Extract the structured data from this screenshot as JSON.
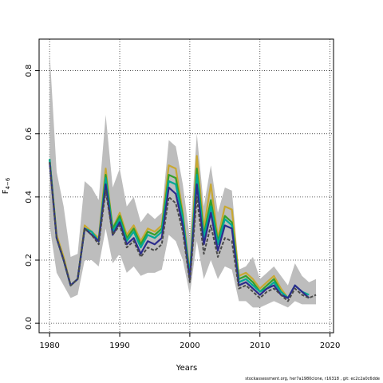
{
  "chart_data": {
    "type": "line",
    "title": "",
    "xlabel": "Years",
    "ylabel": "F",
    "ylabel_sub": "4−6",
    "xlim": [
      1978.5,
      2020.5
    ],
    "ylim": [
      -0.03,
      0.9
    ],
    "x_ticks": [
      1980,
      1990,
      2000,
      2010,
      2020
    ],
    "y_ticks": [
      0.0,
      0.2,
      0.4,
      0.6,
      0.8
    ],
    "grid": true,
    "legend": "none",
    "band": {
      "x": [
        1980,
        1981,
        1982,
        1983,
        1984,
        1985,
        1986,
        1987,
        1988,
        1989,
        1990,
        1991,
        1992,
        1993,
        1994,
        1995,
        1996,
        1997,
        1998,
        1999,
        2000,
        2001,
        2002,
        2003,
        2004,
        2005,
        2006,
        2007,
        2008,
        2009,
        2010,
        2011,
        2012,
        2013,
        2014,
        2015,
        2016,
        2017,
        2018
      ],
      "upper": [
        0.86,
        0.48,
        0.37,
        0.21,
        0.22,
        0.45,
        0.43,
        0.39,
        0.66,
        0.43,
        0.49,
        0.37,
        0.4,
        0.32,
        0.35,
        0.33,
        0.35,
        0.58,
        0.56,
        0.44,
        0.27,
        0.6,
        0.37,
        0.5,
        0.35,
        0.43,
        0.42,
        0.17,
        0.18,
        0.21,
        0.14,
        0.16,
        0.18,
        0.15,
        0.12,
        0.19,
        0.15,
        0.13,
        0.14
      ],
      "lower": [
        0.31,
        0.16,
        0.12,
        0.08,
        0.09,
        0.2,
        0.2,
        0.18,
        0.3,
        0.19,
        0.22,
        0.16,
        0.18,
        0.15,
        0.16,
        0.16,
        0.17,
        0.28,
        0.26,
        0.2,
        0.09,
        0.26,
        0.14,
        0.2,
        0.14,
        0.18,
        0.17,
        0.07,
        0.07,
        0.05,
        0.05,
        0.06,
        0.07,
        0.06,
        0.05,
        0.07,
        0.06,
        0.06,
        0.06
      ],
      "color": "#bdbdbd"
    },
    "series": [
      {
        "color": "#c8a832",
        "dashed": false,
        "x": [
          1980,
          1981,
          1982,
          1983,
          1984,
          1985,
          1986,
          1987,
          1988,
          1989,
          1990,
          1991,
          1992,
          1993,
          1994,
          1995,
          1996,
          1997,
          1998,
          1999,
          2000,
          2001,
          2002,
          2003,
          2004,
          2005,
          2006,
          2007,
          2008,
          2009,
          2010,
          2011,
          2012,
          2013,
          2014
        ],
        "values": [
          0.52,
          0.28,
          0.21,
          0.12,
          0.14,
          0.31,
          0.29,
          0.27,
          0.49,
          0.3,
          0.35,
          0.28,
          0.31,
          0.26,
          0.3,
          0.29,
          0.31,
          0.5,
          0.49,
          0.35,
          0.16,
          0.53,
          0.3,
          0.44,
          0.27,
          0.37,
          0.36,
          0.15,
          0.16,
          0.14,
          0.11,
          0.13,
          0.15,
          0.11,
          0.08
        ]
      },
      {
        "color": "#33a02c",
        "dashed": false,
        "x": [
          1980,
          1981,
          1982,
          1983,
          1984,
          1985,
          1986,
          1987,
          1988,
          1989,
          1990,
          1991,
          1992,
          1993,
          1994,
          1995,
          1996,
          1997,
          1998,
          1999,
          2000,
          2001,
          2002,
          2003,
          2004,
          2005,
          2006,
          2007,
          2008,
          2009,
          2010,
          2011,
          2012,
          2013,
          2014
        ],
        "values": [
          0.52,
          0.27,
          0.2,
          0.12,
          0.14,
          0.3,
          0.29,
          0.26,
          0.47,
          0.3,
          0.34,
          0.27,
          0.3,
          0.25,
          0.29,
          0.28,
          0.3,
          0.47,
          0.46,
          0.34,
          0.15,
          0.49,
          0.28,
          0.39,
          0.26,
          0.34,
          0.32,
          0.14,
          0.15,
          0.13,
          0.1,
          0.12,
          0.14,
          0.1,
          0.08
        ]
      },
      {
        "color": "#00a896",
        "dashed": false,
        "x": [
          1980,
          1981,
          1982,
          1983,
          1984,
          1985,
          1986,
          1987,
          1988,
          1989,
          1990,
          1991,
          1992,
          1993,
          1994,
          1995,
          1996,
          1997,
          1998,
          1999,
          2000,
          2001,
          2002,
          2003,
          2004,
          2005,
          2006,
          2007,
          2008,
          2009,
          2010,
          2011,
          2012,
          2013,
          2014,
          2015,
          2016,
          2017
        ],
        "values": [
          0.52,
          0.27,
          0.2,
          0.12,
          0.14,
          0.3,
          0.29,
          0.26,
          0.46,
          0.29,
          0.33,
          0.26,
          0.29,
          0.24,
          0.28,
          0.27,
          0.29,
          0.45,
          0.44,
          0.33,
          0.15,
          0.47,
          0.27,
          0.37,
          0.25,
          0.33,
          0.31,
          0.13,
          0.14,
          0.12,
          0.1,
          0.11,
          0.13,
          0.1,
          0.08,
          0.12,
          0.1,
          0.09
        ]
      },
      {
        "color": "#2c2c8c",
        "dashed": false,
        "x": [
          1980,
          1981,
          1982,
          1983,
          1984,
          1985,
          1986,
          1987,
          1988,
          1989,
          1990,
          1991,
          1992,
          1993,
          1994,
          1995,
          1996,
          1997,
          1998,
          1999,
          2000,
          2001,
          2002,
          2003,
          2004,
          2005,
          2006,
          2007,
          2008,
          2009,
          2010,
          2011,
          2012,
          2013,
          2014,
          2015,
          2016,
          2017
        ],
        "values": [
          0.51,
          0.27,
          0.2,
          0.12,
          0.14,
          0.3,
          0.28,
          0.26,
          0.44,
          0.28,
          0.32,
          0.25,
          0.27,
          0.22,
          0.26,
          0.25,
          0.27,
          0.43,
          0.41,
          0.31,
          0.14,
          0.44,
          0.25,
          0.35,
          0.23,
          0.31,
          0.3,
          0.12,
          0.13,
          0.11,
          0.09,
          0.11,
          0.12,
          0.09,
          0.08,
          0.12,
          0.1,
          0.08
        ]
      },
      {
        "color": "#4a4a4a",
        "dashed": true,
        "x": [
          1980,
          1981,
          1982,
          1983,
          1984,
          1985,
          1986,
          1987,
          1988,
          1989,
          1990,
          1991,
          1992,
          1993,
          1994,
          1995,
          1996,
          1997,
          1998,
          1999,
          2000,
          2001,
          2002,
          2003,
          2004,
          2005,
          2006,
          2007,
          2008,
          2009,
          2010,
          2011,
          2012,
          2013,
          2014,
          2015,
          2016,
          2017,
          2018
        ],
        "values": [
          0.51,
          0.27,
          0.2,
          0.12,
          0.14,
          0.3,
          0.28,
          0.25,
          0.42,
          0.28,
          0.31,
          0.24,
          0.26,
          0.21,
          0.24,
          0.23,
          0.25,
          0.4,
          0.38,
          0.29,
          0.13,
          0.4,
          0.22,
          0.31,
          0.21,
          0.27,
          0.26,
          0.11,
          0.12,
          0.1,
          0.08,
          0.1,
          0.11,
          0.09,
          0.07,
          0.11,
          0.09,
          0.08,
          0.09
        ]
      }
    ]
  },
  "footer_text": "stockassessment.org,  her7a1980clone,  r16318 ,  git:  ec2c2a0c6dde"
}
